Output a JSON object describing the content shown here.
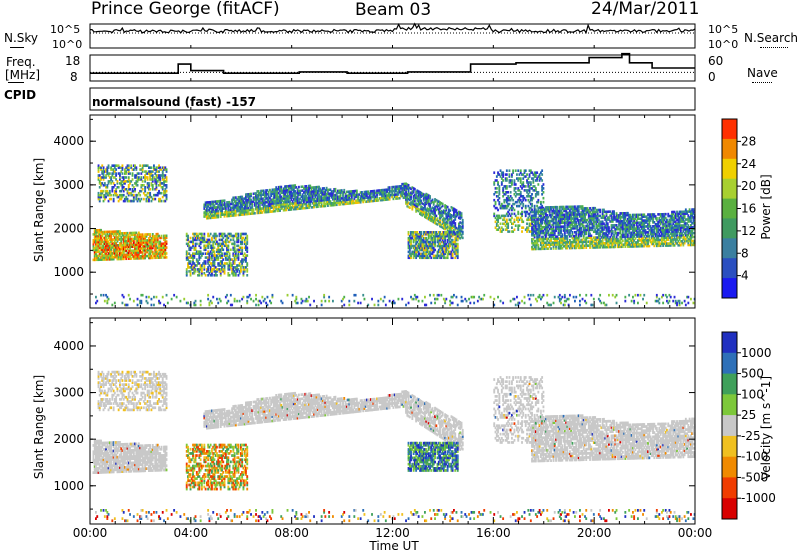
{
  "header": {
    "station": "Prince George (fitACF)",
    "beam": "Beam 03",
    "date": "24/Mar/2011"
  },
  "top_panels": {
    "nsky_label": "N.Sky",
    "nsearch_label": "N.Search",
    "freq_label_1": "Freq.",
    "freq_label_2": "[MHz]",
    "nave_label": "Nave",
    "cpid_label": "CPID",
    "cpid_text": "normalsound (fast) -157",
    "noise_ticks": [
      "10^5",
      "10^0"
    ],
    "freq_ticks": [
      "18",
      "8"
    ],
    "nave_ticks": [
      "60",
      "0"
    ]
  },
  "colors": {
    "nsky_line": "#000000",
    "ground_scatter": "#c8c8c8"
  },
  "chart_data": [
    {
      "type": "line",
      "name_hint": "freq-nave",
      "x_hours": [
        0,
        3.2,
        3.5,
        4.0,
        5.3,
        7.7,
        8.3,
        10.2,
        12.6,
        14.7,
        15.1,
        16.9,
        19.8,
        21.1,
        21.4,
        22.3,
        24
      ],
      "freq_mhz": [
        11.0,
        11.0,
        14.5,
        12.0,
        11.0,
        11.0,
        11.5,
        11.0,
        11.5,
        11.5,
        14.5,
        15.0,
        17.0,
        18.5,
        15.0,
        13.0,
        13.0
      ],
      "freq_ylim": [
        8,
        18
      ],
      "nave_value": 20,
      "nave_ylim": [
        0,
        60
      ]
    },
    {
      "type": "heatmap",
      "title": "",
      "ylabel": "Slant Range [km]",
      "xlabel": "Time UT",
      "x_ticks": [
        "00:00",
        "04:00",
        "08:00",
        "12:00",
        "16:00",
        "20:00",
        "00:00"
      ],
      "x_range_hours": [
        0,
        24
      ],
      "y_ticks": [
        "1000",
        "2000",
        "3000",
        "4000"
      ],
      "ylim": [
        180,
        4600
      ],
      "colorbar_label": "Power [dB]",
      "colorbar_ticks": [
        "28",
        "24",
        "20",
        "16",
        "12",
        "8",
        "4"
      ],
      "colorbar_range": [
        0,
        32
      ]
    },
    {
      "type": "heatmap",
      "title": "",
      "ylabel": "Slant Range [km]",
      "xlabel": "Time UT",
      "x_ticks": [
        "00:00",
        "04:00",
        "08:00",
        "12:00",
        "16:00",
        "20:00",
        "00:00"
      ],
      "x_range_hours": [
        0,
        24
      ],
      "y_ticks": [
        "1000",
        "2000",
        "3000",
        "4000"
      ],
      "ylim": [
        180,
        4600
      ],
      "colorbar_label": "Velocity [m s^-1]",
      "colorbar_ticks": [
        "1000",
        "500",
        "100",
        "25",
        "-25",
        "-100",
        "-500",
        "-1000"
      ]
    }
  ]
}
